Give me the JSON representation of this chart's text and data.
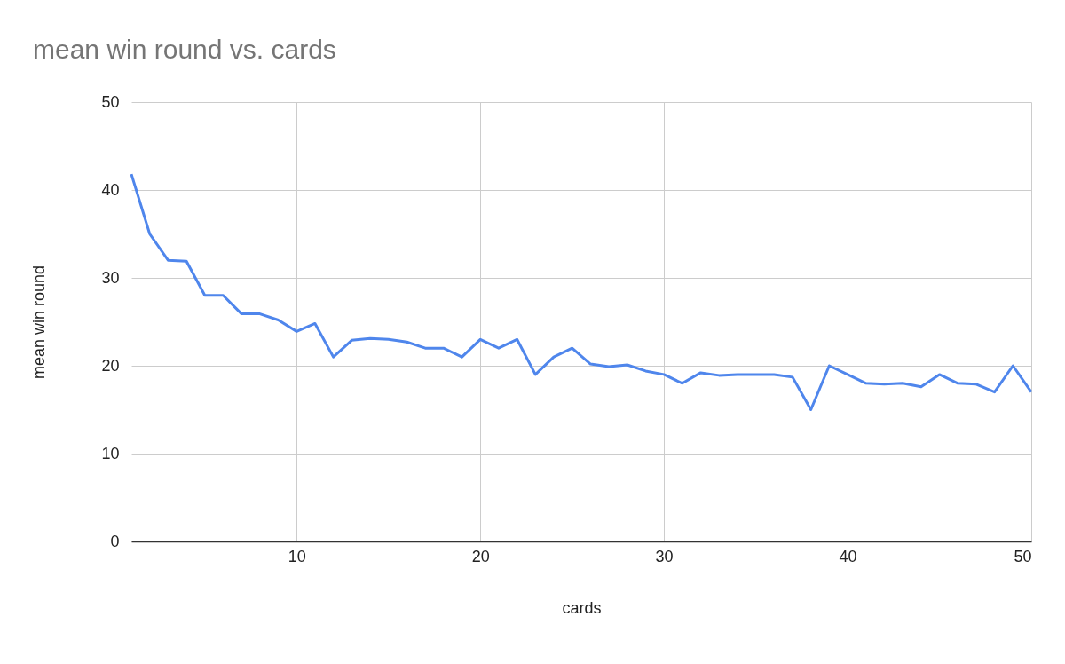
{
  "chart_data": {
    "type": "line",
    "title": "mean win round vs. cards",
    "xlabel": "cards",
    "ylabel": "mean win round",
    "x": [
      1,
      2,
      3,
      4,
      5,
      6,
      7,
      8,
      9,
      10,
      11,
      12,
      13,
      14,
      15,
      16,
      17,
      18,
      19,
      20,
      21,
      22,
      23,
      24,
      25,
      26,
      27,
      28,
      29,
      30,
      31,
      32,
      33,
      34,
      35,
      36,
      37,
      38,
      39,
      40,
      41,
      42,
      43,
      44,
      45,
      46,
      47,
      48,
      49,
      50
    ],
    "series": [
      {
        "color": "#4f86ec",
        "values": [
          41.8,
          35,
          32,
          31.9,
          28,
          28,
          25.9,
          25.9,
          25.2,
          23.9,
          24.8,
          21,
          22.9,
          23.1,
          23,
          22.7,
          22,
          22,
          21,
          23,
          22,
          23,
          19,
          21,
          22,
          20.2,
          19.9,
          20.1,
          19.4,
          19,
          18,
          19.2,
          18.9,
          19,
          19,
          19,
          18.7,
          15,
          20,
          19,
          18,
          17.9,
          18,
          17.6,
          19,
          18,
          17.9,
          17,
          20,
          17
        ]
      }
    ],
    "xlim": [
      1,
      50
    ],
    "xticks": [
      10,
      20,
      30,
      40,
      50
    ],
    "ylim": [
      0,
      50
    ],
    "yticks": [
      0,
      10,
      20,
      30,
      40,
      50
    ],
    "grid": true,
    "legend": false,
    "marker": "none",
    "line_style": "solid"
  }
}
